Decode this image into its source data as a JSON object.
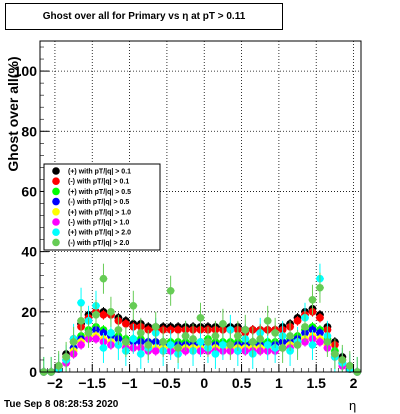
{
  "chart_data": {
    "type": "scatter",
    "title": "Ghost over all for Primary vs   η at pT > 0.11",
    "xlabel": "η",
    "ylabel": "Ghost over all(%)",
    "xlim": [
      -2.2,
      2.1
    ],
    "ylim": [
      0,
      110
    ],
    "xticks": [
      -2,
      -1.5,
      -1,
      -0.5,
      0,
      0.5,
      1,
      1.5,
      2
    ],
    "xtick_labels": [
      "−2",
      "−1.5",
      "−1",
      "−0.5",
      "0",
      "0.5",
      "1",
      "1.5",
      "2"
    ],
    "yticks": [
      0,
      20,
      40,
      60,
      80,
      100
    ],
    "grid": true,
    "legend_position": "left",
    "x": [
      -2.15,
      -2.05,
      -1.95,
      -1.85,
      -1.75,
      -1.65,
      -1.55,
      -1.45,
      -1.35,
      -1.25,
      -1.15,
      -1.05,
      -0.95,
      -0.85,
      -0.75,
      -0.65,
      -0.55,
      -0.45,
      -0.35,
      -0.25,
      -0.15,
      -0.05,
      0.05,
      0.15,
      0.25,
      0.35,
      0.45,
      0.55,
      0.65,
      0.75,
      0.85,
      0.95,
      1.05,
      1.15,
      1.25,
      1.35,
      1.45,
      1.55,
      1.65,
      1.75,
      1.85,
      1.95,
      2.05
    ],
    "series": [
      {
        "name": "(+) with pT/|q| > 0.1",
        "color": "#000000",
        "values": [
          0,
          0,
          2,
          6,
          11,
          16,
          19,
          20,
          20,
          19,
          18,
          17,
          16,
          16,
          15,
          15,
          15,
          15,
          15,
          15,
          15,
          15,
          15,
          15,
          15,
          15,
          15,
          14,
          14,
          14,
          14,
          14,
          15,
          16,
          18,
          20,
          21,
          19,
          15,
          10,
          5,
          2,
          0
        ]
      },
      {
        "name": "(-) with pT/|q| > 0.1",
        "color": "#ff0000",
        "values": [
          0,
          0,
          1,
          5,
          10,
          15,
          18,
          20,
          19,
          19,
          17,
          16,
          15,
          15,
          14,
          14,
          14,
          14,
          14,
          14,
          14,
          14,
          14,
          14,
          14,
          14,
          14,
          13,
          14,
          14,
          14,
          14,
          14,
          15,
          17,
          19,
          20,
          18,
          14,
          9,
          4,
          1,
          0
        ]
      },
      {
        "name": "(+) with pT/|q| > 0.5",
        "color": "#00ff00",
        "values": [
          0,
          0,
          1,
          4,
          8,
          12,
          14,
          15,
          14,
          13,
          12,
          11,
          11,
          11,
          10,
          10,
          10,
          10,
          10,
          10,
          10,
          10,
          11,
          10,
          10,
          10,
          10,
          10,
          10,
          10,
          10,
          10,
          10,
          11,
          12,
          14,
          15,
          14,
          11,
          7,
          3,
          1,
          0
        ]
      },
      {
        "name": "(-) with pT/|q| > 0.5",
        "color": "#0000ff",
        "values": [
          0,
          0,
          1,
          4,
          8,
          11,
          13,
          14,
          13,
          12,
          11,
          10,
          10,
          10,
          10,
          10,
          9,
          9,
          9,
          9,
          9,
          9,
          10,
          9,
          9,
          9,
          9,
          9,
          9,
          9,
          9,
          9,
          10,
          10,
          11,
          13,
          14,
          13,
          10,
          6,
          3,
          1,
          0
        ]
      },
      {
        "name": "(+) with pT/|q| > 1.0",
        "color": "#ffff00",
        "values": [
          0,
          0,
          1,
          3,
          7,
          10,
          12,
          12,
          11,
          10,
          9,
          9,
          8,
          8,
          8,
          8,
          8,
          8,
          8,
          8,
          8,
          8,
          8,
          8,
          8,
          8,
          8,
          8,
          8,
          8,
          8,
          8,
          8,
          9,
          10,
          11,
          12,
          11,
          9,
          5,
          2,
          1,
          0
        ]
      },
      {
        "name": "(-) with pT/|q| > 1.0",
        "color": "#ff00ff",
        "values": [
          0,
          0,
          1,
          3,
          6,
          9,
          11,
          11,
          10,
          9,
          9,
          8,
          8,
          8,
          7,
          7,
          7,
          7,
          7,
          7,
          7,
          7,
          7,
          7,
          7,
          7,
          7,
          7,
          7,
          7,
          7,
          7,
          8,
          8,
          9,
          10,
          11,
          10,
          8,
          5,
          2,
          1,
          0
        ]
      },
      {
        "name": "(+) with pT/|q| > 2.0",
        "color": "#00ffff",
        "values": [
          0,
          0,
          1,
          4,
          11,
          23,
          17,
          22,
          8,
          13,
          9,
          7,
          11,
          6,
          8,
          13,
          7,
          9,
          6,
          12,
          7,
          10,
          8,
          6,
          9,
          14,
          7,
          11,
          6,
          13,
          9,
          8,
          12,
          7,
          10,
          18,
          9,
          31,
          12,
          5,
          3,
          1,
          0
        ]
      },
      {
        "name": "(-) with pT/|q| > 2.0",
        "color": "#66cc55",
        "values": [
          0,
          0,
          2,
          5,
          10,
          17,
          13,
          19,
          31,
          20,
          14,
          10,
          22,
          13,
          9,
          15,
          10,
          27,
          8,
          12,
          11,
          18,
          10,
          12,
          16,
          9,
          12,
          14,
          10,
          11,
          17,
          13,
          8,
          12,
          9,
          15,
          24,
          28,
          10,
          6,
          4,
          2,
          0
        ]
      }
    ]
  },
  "footer": {
    "timestamp": "Tue Sep  8 08:28:53 2020"
  }
}
